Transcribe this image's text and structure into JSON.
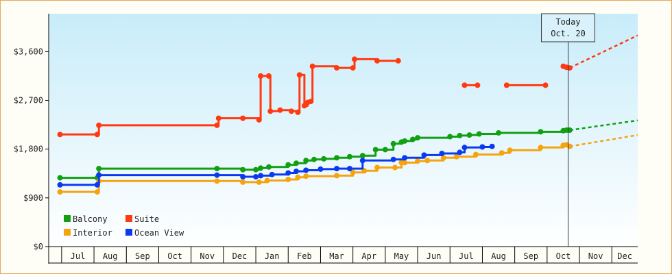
{
  "chart_data": {
    "type": "line",
    "title": "",
    "xlabel": "",
    "ylabel": "",
    "ylim": [
      0,
      4300
    ],
    "y_ticks": [
      {
        "value": 0,
        "label": "$0"
      },
      {
        "value": 900,
        "label": "$900"
      },
      {
        "value": 1800,
        "label": "$1,800"
      },
      {
        "value": 2700,
        "label": "$2,700"
      },
      {
        "value": 3600,
        "label": "$3,600"
      }
    ],
    "x_unit": "month index (0 = start of Jul)",
    "xlim": [
      -0.4,
      17.8
    ],
    "x_ticks": [
      "Jul",
      "Aug",
      "Sep",
      "Oct",
      "Nov",
      "Dec",
      "Jan",
      "Feb",
      "Mar",
      "Apr",
      "May",
      "Jun",
      "Jul",
      "Aug",
      "Sep",
      "Oct",
      "Nov",
      "Dec"
    ],
    "today": {
      "line1": "Today",
      "line2": "Oct. 20",
      "x": 15.65
    },
    "grid": false,
    "legend_position": "bottom-left",
    "series": [
      {
        "name": "Balcony",
        "color": "#11a011",
        "points": [
          [
            -0.05,
            1270
          ],
          [
            1.1,
            1270
          ],
          [
            1.15,
            1440
          ],
          [
            4.8,
            1440
          ],
          [
            5.6,
            1420
          ],
          [
            6.0,
            1420
          ],
          [
            6.15,
            1450
          ],
          [
            6.4,
            1470
          ],
          [
            7.0,
            1510
          ],
          [
            7.25,
            1540
          ],
          [
            7.55,
            1590
          ],
          [
            7.8,
            1610
          ],
          [
            8.1,
            1620
          ],
          [
            8.5,
            1640
          ],
          [
            8.9,
            1660
          ],
          [
            9.3,
            1680
          ],
          [
            9.7,
            1790
          ],
          [
            10.0,
            1790
          ],
          [
            10.25,
            1900
          ],
          [
            10.5,
            1930
          ],
          [
            10.6,
            1950
          ],
          [
            10.85,
            1980
          ],
          [
            11.0,
            2010
          ],
          [
            12.0,
            2030
          ],
          [
            12.3,
            2050
          ],
          [
            12.6,
            2060
          ],
          [
            12.9,
            2080
          ],
          [
            13.5,
            2100
          ],
          [
            14.8,
            2120
          ],
          [
            15.5,
            2140
          ],
          [
            15.6,
            2150
          ],
          [
            15.7,
            2150
          ]
        ],
        "forecast": [
          [
            15.7,
            2150
          ],
          [
            17.8,
            2330
          ]
        ]
      },
      {
        "name": "Suite",
        "color": "#ff3a10",
        "segments": [
          [
            [
              -0.05,
              2070
            ],
            [
              1.1,
              2070
            ],
            [
              1.15,
              2240
            ],
            [
              4.8,
              2240
            ],
            [
              4.85,
              2370
            ],
            [
              5.6,
              2370
            ],
            [
              6.1,
              2340
            ],
            [
              6.15,
              3150
            ],
            [
              6.4,
              3150
            ],
            [
              6.45,
              2500
            ],
            [
              6.75,
              2520
            ],
            [
              7.1,
              2500
            ],
            [
              7.3,
              2480
            ],
            [
              7.35,
              3170
            ],
            [
              7.5,
              2600
            ],
            [
              7.6,
              2660
            ],
            [
              7.7,
              2680
            ],
            [
              7.75,
              3330
            ],
            [
              8.5,
              3300
            ],
            [
              9.0,
              3300
            ],
            [
              9.05,
              3460
            ],
            [
              9.75,
              3430
            ],
            [
              10.4,
              3430
            ]
          ],
          [
            [
              12.45,
              2980
            ],
            [
              12.85,
              2980
            ]
          ],
          [
            [
              13.75,
              2980
            ],
            [
              14.95,
              2980
            ]
          ],
          [
            [
              15.5,
              3330
            ],
            [
              15.6,
              3310
            ],
            [
              15.7,
              3300
            ]
          ]
        ],
        "forecast": [
          [
            15.7,
            3300
          ],
          [
            17.8,
            3900
          ]
        ]
      },
      {
        "name": "Interior",
        "color": "#f5a40e",
        "points": [
          [
            -0.05,
            1010
          ],
          [
            1.1,
            1010
          ],
          [
            1.15,
            1210
          ],
          [
            4.8,
            1210
          ],
          [
            5.6,
            1190
          ],
          [
            6.1,
            1190
          ],
          [
            6.35,
            1220
          ],
          [
            7.0,
            1240
          ],
          [
            7.3,
            1280
          ],
          [
            7.55,
            1300
          ],
          [
            8.5,
            1310
          ],
          [
            9.0,
            1370
          ],
          [
            9.35,
            1400
          ],
          [
            9.75,
            1460
          ],
          [
            10.3,
            1460
          ],
          [
            10.5,
            1550
          ],
          [
            10.6,
            1550
          ],
          [
            11.0,
            1580
          ],
          [
            11.3,
            1590
          ],
          [
            11.8,
            1640
          ],
          [
            12.2,
            1660
          ],
          [
            12.8,
            1700
          ],
          [
            13.6,
            1730
          ],
          [
            13.85,
            1780
          ],
          [
            14.8,
            1830
          ],
          [
            15.5,
            1870
          ],
          [
            15.6,
            1880
          ],
          [
            15.7,
            1850
          ]
        ],
        "forecast": [
          [
            15.7,
            1850
          ],
          [
            17.8,
            2060
          ]
        ]
      },
      {
        "name": "Ocean View",
        "color": "#0a3af0",
        "points": [
          [
            -0.05,
            1140
          ],
          [
            1.1,
            1140
          ],
          [
            1.15,
            1320
          ],
          [
            4.8,
            1320
          ],
          [
            5.6,
            1290
          ],
          [
            6.0,
            1290
          ],
          [
            6.15,
            1310
          ],
          [
            6.5,
            1330
          ],
          [
            7.0,
            1360
          ],
          [
            7.25,
            1390
          ],
          [
            7.55,
            1410
          ],
          [
            8.0,
            1430
          ],
          [
            8.5,
            1440
          ],
          [
            8.9,
            1440
          ],
          [
            9.3,
            1590
          ],
          [
            10.25,
            1610
          ],
          [
            10.6,
            1640
          ],
          [
            11.2,
            1690
          ],
          [
            11.75,
            1720
          ],
          [
            12.3,
            1740
          ],
          [
            12.45,
            1830
          ],
          [
            13.0,
            1840
          ],
          [
            13.3,
            1850
          ]
        ]
      }
    ]
  }
}
